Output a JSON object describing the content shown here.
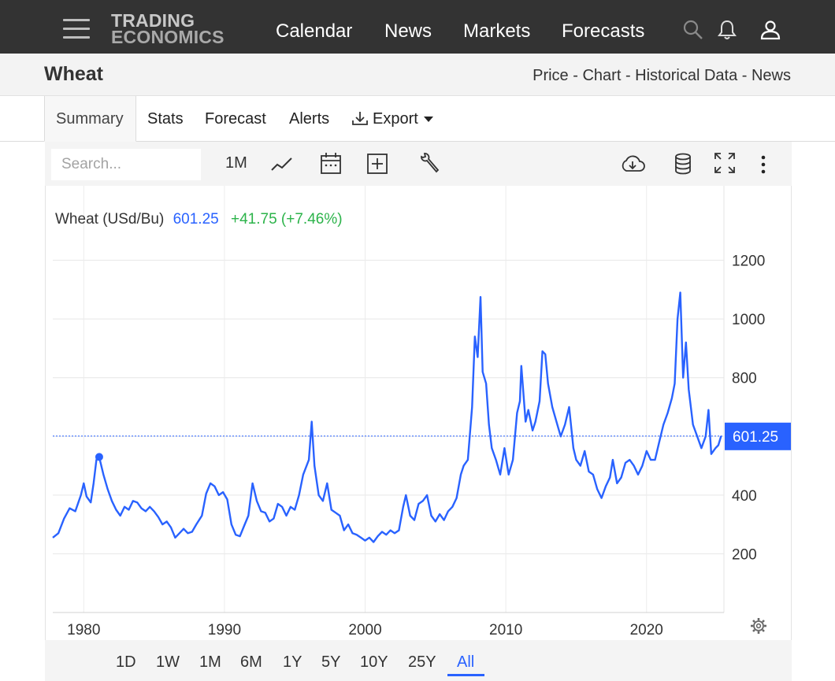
{
  "nav": {
    "logo_line1": "TRADING",
    "logo_line2": "ECONOMICS",
    "links": [
      "Calendar",
      "News",
      "Markets",
      "Forecasts"
    ]
  },
  "header": {
    "title": "Wheat",
    "crumbs": [
      "Price",
      "Chart",
      "Historical Data",
      "News"
    ]
  },
  "tabs": [
    "Summary",
    "Stats",
    "Forecast",
    "Alerts",
    "Export"
  ],
  "toolbar": {
    "search_placeholder": "Search...",
    "interval_label": "1M"
  },
  "ranges": [
    "1D",
    "1W",
    "1M",
    "6M",
    "1Y",
    "5Y",
    "10Y",
    "25Y",
    "All"
  ],
  "active_range": "All",
  "colors": {
    "line": "#2962ff",
    "change": "#2cb34a",
    "nav_bg": "#333333"
  },
  "chart_data": {
    "type": "line",
    "legend_name": "Wheat (USd/Bu)",
    "last_value": "601.25",
    "change": "+41.75 (+7.46%)",
    "last_value_label": "601.25",
    "xlim": [
      1977.8,
      2025.5
    ],
    "ylim": [
      0,
      1400
    ],
    "x_ticks": [
      1980,
      1990,
      2000,
      2010,
      2020
    ],
    "y_ticks": [
      200,
      400,
      800,
      1000,
      1200
    ],
    "grid": true,
    "series": [
      {
        "values": [
          [
            1977.8,
            255
          ],
          [
            1978.2,
            270
          ],
          [
            1978.6,
            320
          ],
          [
            1979.0,
            355
          ],
          [
            1979.4,
            345
          ],
          [
            1979.8,
            400
          ],
          [
            1980.0,
            440
          ],
          [
            1980.2,
            395
          ],
          [
            1980.5,
            375
          ],
          [
            1980.7,
            440
          ],
          [
            1980.9,
            520
          ],
          [
            1981.1,
            530
          ],
          [
            1981.4,
            470
          ],
          [
            1981.7,
            420
          ],
          [
            1982.0,
            380
          ],
          [
            1982.3,
            350
          ],
          [
            1982.6,
            330
          ],
          [
            1982.9,
            360
          ],
          [
            1983.2,
            350
          ],
          [
            1983.5,
            380
          ],
          [
            1983.8,
            375
          ],
          [
            1984.1,
            355
          ],
          [
            1984.4,
            345
          ],
          [
            1984.7,
            360
          ],
          [
            1985.0,
            345
          ],
          [
            1985.3,
            325
          ],
          [
            1985.6,
            300
          ],
          [
            1985.9,
            310
          ],
          [
            1986.2,
            290
          ],
          [
            1986.5,
            255
          ],
          [
            1986.8,
            270
          ],
          [
            1987.1,
            285
          ],
          [
            1987.4,
            270
          ],
          [
            1987.7,
            275
          ],
          [
            1988.0,
            300
          ],
          [
            1988.4,
            330
          ],
          [
            1988.7,
            405
          ],
          [
            1989.0,
            440
          ],
          [
            1989.3,
            430
          ],
          [
            1989.6,
            400
          ],
          [
            1989.9,
            410
          ],
          [
            1990.2,
            385
          ],
          [
            1990.5,
            300
          ],
          [
            1990.8,
            265
          ],
          [
            1991.1,
            260
          ],
          [
            1991.4,
            295
          ],
          [
            1991.7,
            330
          ],
          [
            1992.0,
            440
          ],
          [
            1992.3,
            380
          ],
          [
            1992.6,
            345
          ],
          [
            1992.9,
            340
          ],
          [
            1993.2,
            310
          ],
          [
            1993.5,
            320
          ],
          [
            1993.8,
            370
          ],
          [
            1994.1,
            360
          ],
          [
            1994.4,
            330
          ],
          [
            1994.7,
            360
          ],
          [
            1995.0,
            350
          ],
          [
            1995.3,
            400
          ],
          [
            1995.6,
            470
          ],
          [
            1996.0,
            520
          ],
          [
            1996.2,
            650
          ],
          [
            1996.4,
            500
          ],
          [
            1996.7,
            400
          ],
          [
            1997.0,
            380
          ],
          [
            1997.3,
            440
          ],
          [
            1997.6,
            350
          ],
          [
            1997.9,
            340
          ],
          [
            1998.2,
            330
          ],
          [
            1998.5,
            280
          ],
          [
            1998.8,
            300
          ],
          [
            1999.1,
            270
          ],
          [
            1999.4,
            265
          ],
          [
            1999.7,
            255
          ],
          [
            2000.0,
            245
          ],
          [
            2000.3,
            255
          ],
          [
            2000.6,
            240
          ],
          [
            2000.9,
            260
          ],
          [
            2001.2,
            275
          ],
          [
            2001.5,
            265
          ],
          [
            2001.8,
            280
          ],
          [
            2002.1,
            270
          ],
          [
            2002.4,
            280
          ],
          [
            2002.7,
            360
          ],
          [
            2002.9,
            400
          ],
          [
            2003.2,
            330
          ],
          [
            2003.5,
            315
          ],
          [
            2003.8,
            370
          ],
          [
            2004.1,
            380
          ],
          [
            2004.4,
            400
          ],
          [
            2004.7,
            330
          ],
          [
            2005.0,
            310
          ],
          [
            2005.3,
            335
          ],
          [
            2005.6,
            315
          ],
          [
            2005.9,
            345
          ],
          [
            2006.2,
            360
          ],
          [
            2006.5,
            390
          ],
          [
            2006.8,
            470
          ],
          [
            2007.0,
            500
          ],
          [
            2007.3,
            520
          ],
          [
            2007.6,
            700
          ],
          [
            2007.8,
            940
          ],
          [
            2008.0,
            870
          ],
          [
            2008.2,
            1075
          ],
          [
            2008.35,
            820
          ],
          [
            2008.6,
            780
          ],
          [
            2008.8,
            640
          ],
          [
            2009.0,
            560
          ],
          [
            2009.3,
            520
          ],
          [
            2009.6,
            470
          ],
          [
            2009.9,
            560
          ],
          [
            2010.2,
            470
          ],
          [
            2010.5,
            520
          ],
          [
            2010.8,
            680
          ],
          [
            2011.0,
            720
          ],
          [
            2011.1,
            840
          ],
          [
            2011.4,
            650
          ],
          [
            2011.6,
            690
          ],
          [
            2011.9,
            620
          ],
          [
            2012.1,
            650
          ],
          [
            2012.4,
            720
          ],
          [
            2012.6,
            890
          ],
          [
            2012.8,
            880
          ],
          [
            2013.0,
            780
          ],
          [
            2013.3,
            700
          ],
          [
            2013.6,
            650
          ],
          [
            2013.9,
            600
          ],
          [
            2014.2,
            640
          ],
          [
            2014.5,
            700
          ],
          [
            2014.8,
            560
          ],
          [
            2015.0,
            520
          ],
          [
            2015.3,
            500
          ],
          [
            2015.6,
            550
          ],
          [
            2015.9,
            480
          ],
          [
            2016.2,
            470
          ],
          [
            2016.5,
            420
          ],
          [
            2016.8,
            390
          ],
          [
            2017.1,
            430
          ],
          [
            2017.4,
            460
          ],
          [
            2017.6,
            520
          ],
          [
            2017.9,
            440
          ],
          [
            2018.2,
            460
          ],
          [
            2018.5,
            510
          ],
          [
            2018.8,
            520
          ],
          [
            2019.1,
            500
          ],
          [
            2019.4,
            470
          ],
          [
            2019.7,
            500
          ],
          [
            2020.0,
            550
          ],
          [
            2020.3,
            520
          ],
          [
            2020.6,
            520
          ],
          [
            2020.9,
            580
          ],
          [
            2021.2,
            640
          ],
          [
            2021.5,
            680
          ],
          [
            2021.8,
            730
          ],
          [
            2022.0,
            780
          ],
          [
            2022.2,
            1000
          ],
          [
            2022.4,
            1090
          ],
          [
            2022.6,
            800
          ],
          [
            2022.8,
            920
          ],
          [
            2023.0,
            760
          ],
          [
            2023.3,
            640
          ],
          [
            2023.6,
            600
          ],
          [
            2023.9,
            560
          ],
          [
            2024.2,
            600
          ],
          [
            2024.4,
            690
          ],
          [
            2024.6,
            540
          ],
          [
            2024.9,
            560
          ],
          [
            2025.1,
            570
          ],
          [
            2025.3,
            601.25
          ]
        ]
      }
    ]
  }
}
